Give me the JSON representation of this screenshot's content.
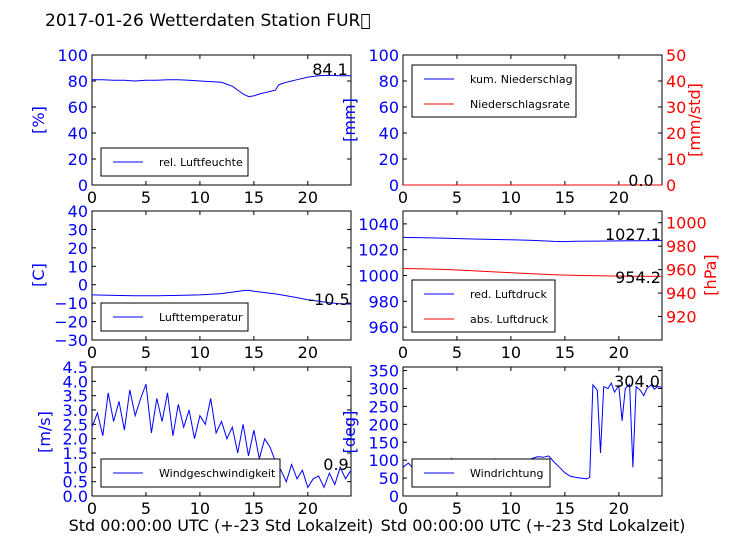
{
  "figure_title": "2017-01-26 Wetterdaten Station FUR\u0000",
  "chart_data": [
    {
      "id": "humidity",
      "type": "line",
      "xlim": [
        0,
        24
      ],
      "ylim": [
        0,
        100
      ],
      "x_ticks": [
        "0",
        "5",
        "10",
        "15",
        "20"
      ],
      "y_ticks": [
        "0",
        "20",
        "40",
        "60",
        "80",
        "100"
      ],
      "ylabel": "[%]",
      "legend": "rel. Luftfeuchte",
      "current_value": "84.1",
      "series": [
        {
          "name": "rel. Luftfeuchte",
          "color": "#0000ff",
          "x": [
            0,
            1,
            2,
            3,
            4,
            5,
            6,
            7,
            8,
            9,
            10,
            11,
            12,
            13,
            13.5,
            14,
            14.5,
            15,
            15.5,
            16,
            16.5,
            17,
            17.3,
            17.6,
            18,
            18.5,
            19,
            20,
            21,
            22,
            23,
            24
          ],
          "y": [
            81,
            81,
            80.5,
            80.5,
            80,
            80.5,
            80.5,
            81,
            81,
            80.5,
            80,
            79.5,
            79,
            76,
            73,
            70,
            68,
            68.5,
            70,
            71,
            72,
            73,
            77,
            78,
            79,
            80,
            81,
            83,
            84,
            84.5,
            84,
            84.1
          ]
        }
      ]
    },
    {
      "id": "precip",
      "type": "line",
      "xlim": [
        0,
        24
      ],
      "ylim": [
        0,
        100
      ],
      "ylim_right": [
        0,
        50
      ],
      "x_ticks": [
        "0",
        "5",
        "10",
        "15",
        "20"
      ],
      "y_ticks": [
        "0",
        "20",
        "40",
        "60",
        "80",
        "100"
      ],
      "y_ticks_right": [
        "0",
        "10",
        "20",
        "30",
        "40",
        "50"
      ],
      "ylabel": "[mm]",
      "ylabel_right": "[mm/std]",
      "legend": [
        "kum. Niederschlag",
        "Niederschlagsrate"
      ],
      "current_value": "0.0",
      "series": [
        {
          "name": "kum. Niederschlag",
          "color": "#0000ff",
          "x": [
            0,
            24
          ],
          "y": [
            0,
            0
          ]
        },
        {
          "name": "Niederschlagsrate",
          "color": "#ff0000",
          "x": [
            0,
            24
          ],
          "y": [
            0,
            0
          ]
        }
      ]
    },
    {
      "id": "temperature",
      "type": "line",
      "xlim": [
        0,
        24
      ],
      "ylim": [
        -30,
        40
      ],
      "x_ticks": [
        "0",
        "5",
        "10",
        "15",
        "20"
      ],
      "y_ticks": [
        "−30",
        "−20",
        "−10",
        "0",
        "10",
        "20",
        "30",
        "40"
      ],
      "ylabel": "[C]",
      "legend": "Lufttemperatur",
      "current_value": "-10.5",
      "series": [
        {
          "name": "Lufttemperatur",
          "color": "#0000ff",
          "x": [
            0,
            2,
            4,
            6,
            8,
            10,
            12,
            13,
            14,
            14.5,
            15,
            16,
            17,
            18,
            19,
            20,
            21,
            22,
            23,
            24
          ],
          "y": [
            -5.5,
            -5.8,
            -6,
            -6,
            -5.8,
            -5.5,
            -4.8,
            -4,
            -3.2,
            -3,
            -3.5,
            -4.3,
            -5,
            -6,
            -7,
            -8.2,
            -9,
            -9.8,
            -10.3,
            -10.5
          ]
        }
      ]
    },
    {
      "id": "pressure",
      "type": "line",
      "xlim": [
        0,
        24
      ],
      "ylim": [
        950,
        1050
      ],
      "ylim_right": [
        900,
        1010
      ],
      "x_ticks": [
        "0",
        "5",
        "10",
        "15",
        "20"
      ],
      "y_ticks": [
        "960",
        "980",
        "1000",
        "1020",
        "1040"
      ],
      "y_ticks_right": [
        "920",
        "940",
        "960",
        "980",
        "1000"
      ],
      "ylabel_right": "[hPa]",
      "legend": [
        "red. Luftdruck",
        "abs. Luftdruck"
      ],
      "current_value": "1027.1",
      "current_value_2": "954.2",
      "series": [
        {
          "name": "red. Luftdruck",
          "color": "#0000ff",
          "x": [
            0,
            2,
            4,
            6,
            8,
            10,
            12,
            14,
            15,
            16,
            18,
            20,
            22,
            24
          ],
          "y": [
            1029.5,
            1029.2,
            1028.8,
            1028.4,
            1028,
            1027.7,
            1027.2,
            1026.4,
            1026.3,
            1026.5,
            1026.7,
            1026.8,
            1027,
            1027.1
          ]
        },
        {
          "name": "abs. Luftdruck",
          "color": "#ff0000",
          "x": [
            0,
            2,
            4,
            6,
            8,
            10,
            12,
            14,
            16,
            18,
            20,
            22,
            24
          ],
          "y": [
            961,
            960.6,
            960.1,
            959.3,
            958.3,
            957.4,
            956.5,
            955.7,
            955.1,
            954.8,
            954.5,
            954.3,
            954.2
          ]
        }
      ]
    },
    {
      "id": "wind_speed",
      "type": "line",
      "xlim": [
        0,
        24
      ],
      "ylim": [
        0,
        4.5
      ],
      "x_ticks": [
        "0",
        "5",
        "10",
        "15",
        "20"
      ],
      "y_ticks": [
        "0.0",
        "0.5",
        "1.0",
        "1.5",
        "2.0",
        "2.5",
        "3.0",
        "3.5",
        "4.0",
        "4.5"
      ],
      "ylabel": "[m/s]",
      "xlabel": "Std 00:00:00 UTC (+-23 Std Lokalzeit)",
      "legend": "Windgeschwindigkeit",
      "current_value": "0.9",
      "series": [
        {
          "name": "Windgeschwindigkeit",
          "color": "#0000ff",
          "x": [
            0,
            0.5,
            1,
            1.5,
            2,
            2.5,
            3,
            3.5,
            4,
            4.5,
            5,
            5.5,
            6,
            6.5,
            7,
            7.5,
            8,
            8.5,
            9,
            9.5,
            10,
            10.5,
            11,
            11.5,
            12,
            12.5,
            13,
            13.5,
            14,
            14.5,
            15,
            15.5,
            16,
            16.5,
            17,
            17.5,
            18,
            18.5,
            19,
            19.5,
            20,
            20.5,
            21,
            21.5,
            22,
            22.5,
            23,
            23.5,
            24
          ],
          "y": [
            2.4,
            2.9,
            2.1,
            3.6,
            2.6,
            3.3,
            2.3,
            3.7,
            2.8,
            3.4,
            3.9,
            2.2,
            3.4,
            2.6,
            3.6,
            2.1,
            3.2,
            2.4,
            3.0,
            2.0,
            2.8,
            2.5,
            3.4,
            2.2,
            2.6,
            2.0,
            2.4,
            1.5,
            2.5,
            1.4,
            2.3,
            1.3,
            2.0,
            1.7,
            1.2,
            0.9,
            0.5,
            1.1,
            0.6,
            0.9,
            0.3,
            0.6,
            0.7,
            0.3,
            0.8,
            0.4,
            1.0,
            0.6,
            0.9
          ]
        }
      ]
    },
    {
      "id": "wind_direction",
      "type": "line",
      "xlim": [
        0,
        24
      ],
      "ylim": [
        0,
        360
      ],
      "x_ticks": [
        "0",
        "5",
        "10",
        "15",
        "20"
      ],
      "y_ticks": [
        "0",
        "50",
        "100",
        "150",
        "200",
        "250",
        "300",
        "350"
      ],
      "ylabel": "[deg]",
      "xlabel": "Std 00:00:00 UTC (+-23 Std Lokalzeit)",
      "legend": "Windrichtung",
      "current_value": "304.0",
      "series": [
        {
          "name": "Windrichtung",
          "color": "#0000ff",
          "x": [
            0,
            0.5,
            1,
            1.5,
            2,
            2.5,
            3,
            3.5,
            4,
            4.5,
            5,
            5.5,
            6,
            6.5,
            7,
            7.5,
            8,
            8.5,
            9,
            9.5,
            10,
            10.5,
            11,
            11.5,
            12,
            12.5,
            13,
            13.5,
            14,
            14.5,
            15,
            15.5,
            16,
            16.5,
            17,
            17.3,
            17.6,
            18,
            18.3,
            18.6,
            19,
            19.3,
            19.6,
            20,
            20.3,
            20.6,
            21,
            21.3,
            21.6,
            22,
            22.3,
            22.6,
            23,
            23.3,
            23.6,
            24
          ],
          "y": [
            80,
            92,
            75,
            98,
            85,
            102,
            88,
            95,
            78,
            105,
            90,
            99,
            84,
            96,
            88,
            100,
            92,
            104,
            86,
            97,
            90,
            101,
            93,
            98,
            105,
            110,
            108,
            112,
            95,
            80,
            65,
            55,
            52,
            50,
            48,
            52,
            310,
            295,
            120,
            305,
            300,
            315,
            290,
            308,
            210,
            300,
            312,
            80,
            305,
            295,
            280,
            300,
            310,
            298,
            305,
            304
          ]
        }
      ]
    }
  ]
}
